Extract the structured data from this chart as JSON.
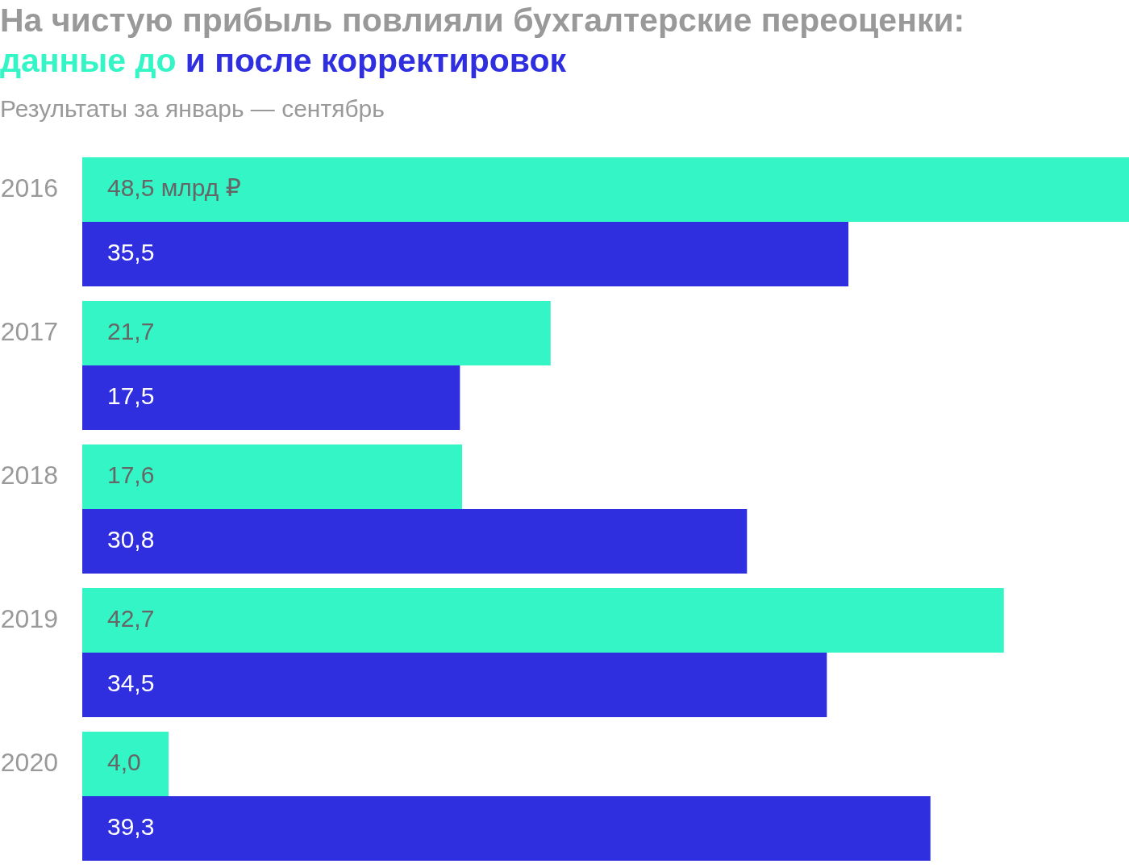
{
  "chart_data": {
    "type": "bar",
    "orientation": "horizontal",
    "title": "На чистую прибыль повлияли бухгалтерские переоценки:",
    "subtitle": "Результаты за январь — сентябрь",
    "categories": [
      "2016",
      "2017",
      "2018",
      "2019",
      "2020"
    ],
    "series": [
      {
        "name": "данные до",
        "color": "#33f5c5",
        "values": [
          48.5,
          21.7,
          17.6,
          42.7,
          4.0
        ],
        "value_labels": [
          "48,5 млрд ₽",
          "21,7",
          "17,6",
          "42,7",
          "4,0"
        ]
      },
      {
        "name": "и после корректировок",
        "color": "#2f2fe0",
        "values": [
          35.5,
          17.5,
          30.8,
          34.5,
          39.3
        ],
        "value_labels": [
          "35,5",
          "17,5",
          "30,8",
          "34,5",
          "39,3"
        ]
      }
    ],
    "xlim": [
      0,
      48.5
    ],
    "tick_labels": "y",
    "legend": "top left"
  }
}
